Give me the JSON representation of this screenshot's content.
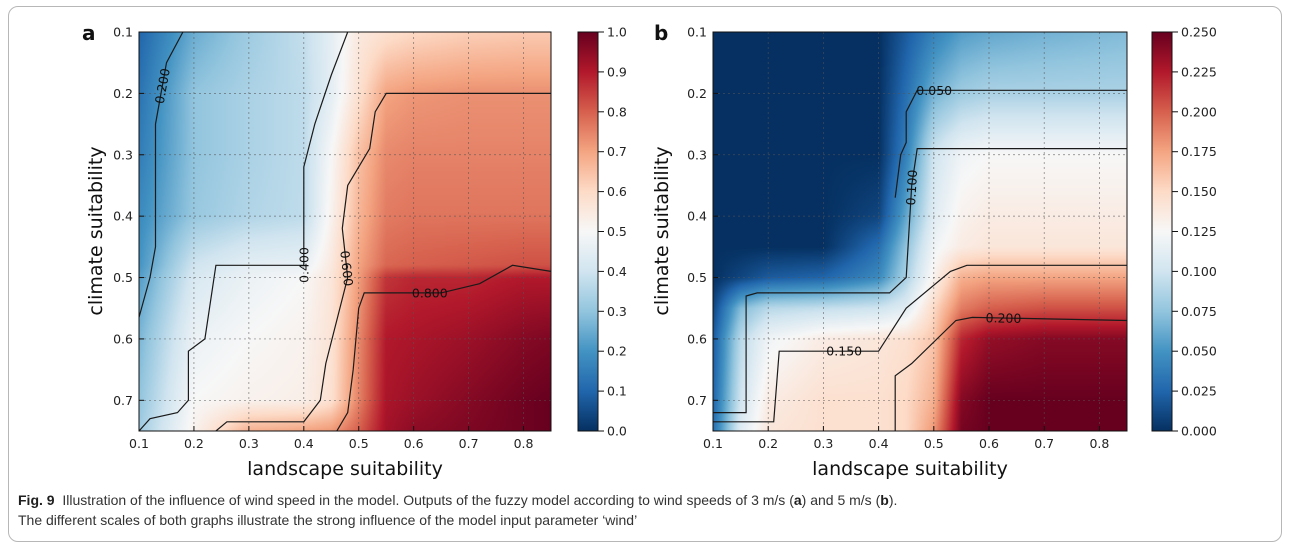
{
  "caption": {
    "fig_number": "Fig. 9",
    "line1_pre": "Illustration of the influence of wind speed in the model. Outputs of the fuzzy model according to wind speeds of 3 m/s (",
    "panel_a": "a",
    "line1_mid": ") and 5 m/s (",
    "panel_b": "b",
    "line1_post": ").",
    "line2": "The different scales of both graphs illustrate the strong influence of the model input parameter ‘wind’"
  },
  "chart_data": [
    {
      "type": "heatmap",
      "panel_label": "a",
      "xlabel": "landscape suitability",
      "ylabel": "climate suitability",
      "xlim": [
        0.1,
        0.85
      ],
      "ylim": [
        0.75,
        0.1
      ],
      "y_inverted": true,
      "xticks": [
        "0.1",
        "0.2",
        "0.3",
        "0.4",
        "0.5",
        "0.6",
        "0.7",
        "0.8"
      ],
      "yticks": [
        "0.1",
        "0.2",
        "0.3",
        "0.4",
        "0.5",
        "0.6",
        "0.7"
      ],
      "grid": true,
      "colormap": "RdBu_r",
      "colorbar": {
        "min": 0.0,
        "max": 1.0,
        "ticks": [
          "0.0",
          "0.1",
          "0.2",
          "0.3",
          "0.4",
          "0.5",
          "0.6",
          "0.7",
          "0.8",
          "0.9",
          "1.0"
        ]
      },
      "surface_samples": {
        "x": [
          0.1,
          0.2,
          0.3,
          0.4,
          0.45,
          0.5,
          0.55,
          0.6,
          0.7,
          0.8,
          0.85
        ],
        "y": [
          0.1,
          0.2,
          0.3,
          0.4,
          0.48,
          0.5,
          0.6,
          0.7,
          0.75
        ],
        "z": [
          [
            0.1,
            0.25,
            0.32,
            0.38,
            0.45,
            0.55,
            0.58,
            0.6,
            0.62,
            0.63,
            0.63
          ],
          [
            0.13,
            0.3,
            0.34,
            0.37,
            0.45,
            0.58,
            0.7,
            0.72,
            0.73,
            0.73,
            0.73
          ],
          [
            0.15,
            0.3,
            0.34,
            0.37,
            0.5,
            0.65,
            0.74,
            0.75,
            0.75,
            0.75,
            0.75
          ],
          [
            0.18,
            0.31,
            0.35,
            0.37,
            0.52,
            0.67,
            0.76,
            0.77,
            0.77,
            0.77,
            0.77
          ],
          [
            0.2,
            0.4,
            0.45,
            0.46,
            0.55,
            0.7,
            0.79,
            0.8,
            0.81,
            0.82,
            0.82
          ],
          [
            0.22,
            0.42,
            0.47,
            0.5,
            0.56,
            0.71,
            0.86,
            0.88,
            0.88,
            0.9,
            0.9
          ],
          [
            0.27,
            0.47,
            0.5,
            0.52,
            0.57,
            0.74,
            0.9,
            0.91,
            0.93,
            0.96,
            0.97
          ],
          [
            0.3,
            0.5,
            0.52,
            0.53,
            0.58,
            0.75,
            0.91,
            0.93,
            0.96,
            0.99,
            1.0
          ],
          [
            0.32,
            0.52,
            0.68,
            0.7,
            0.72,
            0.8,
            0.92,
            0.95,
            0.97,
            0.99,
            1.0
          ]
        ]
      },
      "contours": [
        {
          "label": "0.200",
          "points": [
            [
              0.1,
              0.565
            ],
            [
              0.12,
              0.5
            ],
            [
              0.13,
              0.45
            ],
            [
              0.13,
              0.25
            ],
            [
              0.15,
              0.15
            ],
            [
              0.18,
              0.1
            ]
          ]
        },
        {
          "label": "0.400",
          "points": [
            [
              0.1,
              0.75
            ],
            [
              0.12,
              0.73
            ],
            [
              0.17,
              0.72
            ],
            [
              0.19,
              0.7
            ],
            [
              0.19,
              0.62
            ],
            [
              0.22,
              0.6
            ],
            [
              0.24,
              0.48
            ],
            [
              0.4,
              0.48
            ],
            [
              0.4,
              0.4
            ],
            [
              0.4,
              0.32
            ],
            [
              0.42,
              0.25
            ],
            [
              0.45,
              0.17
            ],
            [
              0.48,
              0.1
            ]
          ]
        },
        {
          "label": "0.600",
          "points": [
            [
              0.24,
              0.75
            ],
            [
              0.26,
              0.735
            ],
            [
              0.4,
              0.735
            ],
            [
              0.43,
              0.7
            ],
            [
              0.44,
              0.64
            ],
            [
              0.48,
              0.5
            ],
            [
              0.47,
              0.42
            ],
            [
              0.48,
              0.35
            ],
            [
              0.52,
              0.29
            ],
            [
              0.53,
              0.23
            ],
            [
              0.55,
              0.2
            ],
            [
              0.85,
              0.2
            ]
          ]
        },
        {
          "label": "0.800",
          "points": [
            [
              0.46,
              0.75
            ],
            [
              0.48,
              0.72
            ],
            [
              0.49,
              0.65
            ],
            [
              0.5,
              0.55
            ],
            [
              0.51,
              0.525
            ],
            [
              0.65,
              0.525
            ],
            [
              0.72,
              0.51
            ],
            [
              0.78,
              0.48
            ],
            [
              0.85,
              0.49
            ]
          ]
        }
      ]
    },
    {
      "type": "heatmap",
      "panel_label": "b",
      "xlabel": "landscape suitability",
      "ylabel": "climate suitability",
      "xlim": [
        0.1,
        0.85
      ],
      "ylim": [
        0.75,
        0.1
      ],
      "y_inverted": true,
      "xticks": [
        "0.1",
        "0.2",
        "0.3",
        "0.4",
        "0.5",
        "0.6",
        "0.7",
        "0.8"
      ],
      "yticks": [
        "0.1",
        "0.2",
        "0.3",
        "0.4",
        "0.5",
        "0.6",
        "0.7"
      ],
      "grid": true,
      "colormap": "RdBu_r",
      "colorbar": {
        "min": 0.0,
        "max": 0.25,
        "ticks": [
          "0.000",
          "0.025",
          "0.050",
          "0.075",
          "0.100",
          "0.125",
          "0.150",
          "0.175",
          "0.200",
          "0.225",
          "0.250"
        ]
      },
      "surface_samples": {
        "x": [
          0.1,
          0.15,
          0.2,
          0.3,
          0.4,
          0.45,
          0.5,
          0.55,
          0.6,
          0.7,
          0.85
        ],
        "y": [
          0.1,
          0.2,
          0.3,
          0.4,
          0.45,
          0.5,
          0.55,
          0.6,
          0.7,
          0.75
        ],
        "z": [
          [
            0.0,
            0.0,
            0.0,
            0.0,
            0.0,
            0.02,
            0.04,
            0.055,
            0.06,
            0.065,
            0.07
          ],
          [
            0.0,
            0.0,
            0.0,
            0.0,
            0.0,
            0.03,
            0.065,
            0.08,
            0.085,
            0.085,
            0.085
          ],
          [
            0.0,
            0.0,
            0.0,
            0.0,
            0.0,
            0.04,
            0.1,
            0.12,
            0.125,
            0.125,
            0.125
          ],
          [
            0.0,
            0.0,
            0.0,
            0.0,
            0.01,
            0.06,
            0.11,
            0.13,
            0.135,
            0.135,
            0.135
          ],
          [
            0.0,
            0.0,
            0.0,
            0.0,
            0.03,
            0.075,
            0.12,
            0.135,
            0.14,
            0.14,
            0.14
          ],
          [
            0.0,
            0.01,
            0.02,
            0.025,
            0.045,
            0.085,
            0.13,
            0.17,
            0.175,
            0.175,
            0.175
          ],
          [
            0.01,
            0.07,
            0.09,
            0.095,
            0.1,
            0.11,
            0.15,
            0.19,
            0.2,
            0.205,
            0.205
          ],
          [
            0.02,
            0.09,
            0.12,
            0.135,
            0.14,
            0.145,
            0.16,
            0.22,
            0.235,
            0.24,
            0.24
          ],
          [
            0.025,
            0.1,
            0.135,
            0.145,
            0.145,
            0.15,
            0.17,
            0.24,
            0.25,
            0.25,
            0.25
          ],
          [
            0.03,
            0.11,
            0.14,
            0.145,
            0.145,
            0.15,
            0.18,
            0.245,
            0.25,
            0.25,
            0.25
          ]
        ]
      },
      "contours": [
        {
          "label": "0.050",
          "points": [
            [
              0.43,
              0.37
            ],
            [
              0.44,
              0.3
            ],
            [
              0.45,
              0.28
            ],
            [
              0.45,
              0.23
            ],
            [
              0.47,
              0.195
            ],
            [
              0.85,
              0.195
            ]
          ]
        },
        {
          "label": "0.100",
          "points": [
            [
              0.1,
              0.72
            ],
            [
              0.16,
              0.72
            ],
            [
              0.16,
              0.53
            ],
            [
              0.18,
              0.525
            ],
            [
              0.42,
              0.525
            ],
            [
              0.45,
              0.5
            ],
            [
              0.46,
              0.35
            ],
            [
              0.47,
              0.29
            ],
            [
              0.85,
              0.29
            ]
          ]
        },
        {
          "label": "0.150",
          "points": [
            [
              0.1,
              0.735
            ],
            [
              0.21,
              0.735
            ],
            [
              0.22,
              0.62
            ],
            [
              0.4,
              0.62
            ],
            [
              0.45,
              0.55
            ],
            [
              0.53,
              0.49
            ],
            [
              0.56,
              0.48
            ],
            [
              0.85,
              0.48
            ]
          ]
        },
        {
          "label": "0.200",
          "points": [
            [
              0.43,
              0.75
            ],
            [
              0.43,
              0.66
            ],
            [
              0.46,
              0.64
            ],
            [
              0.54,
              0.57
            ],
            [
              0.57,
              0.565
            ],
            [
              0.85,
              0.57
            ]
          ]
        }
      ]
    }
  ]
}
